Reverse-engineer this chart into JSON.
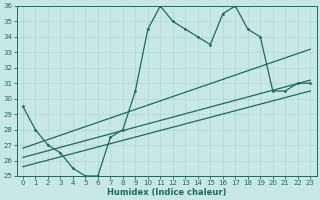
{
  "xlabel": "Humidex (Indice chaleur)",
  "bg_color": "#c8e8e8",
  "grid_color": "#b0d4d4",
  "line_color": "#1a6b5a",
  "xlim": [
    -0.5,
    23.5
  ],
  "ylim": [
    25,
    36
  ],
  "xticks": [
    0,
    1,
    2,
    3,
    4,
    5,
    6,
    7,
    8,
    9,
    10,
    11,
    12,
    13,
    14,
    15,
    16,
    17,
    18,
    19,
    20,
    21,
    22,
    23
  ],
  "yticks": [
    25,
    26,
    27,
    28,
    29,
    30,
    31,
    32,
    33,
    34,
    35,
    36
  ],
  "main_x": [
    0,
    1,
    2,
    3,
    4,
    5,
    6,
    7,
    8,
    9,
    10,
    11,
    12,
    13,
    14,
    15,
    16,
    17,
    18,
    19,
    20,
    21,
    22,
    23
  ],
  "main_y": [
    29.5,
    28,
    27,
    26.5,
    25.5,
    25,
    25,
    27.5,
    28,
    30.5,
    34.5,
    36,
    35,
    34.5,
    34,
    33.5,
    35.5,
    36,
    34.5,
    34,
    30.5,
    30.5,
    31,
    31
  ],
  "trend1_x": [
    0,
    23
  ],
  "trend1_y": [
    26.8,
    33.2
  ],
  "trend2_x": [
    0,
    23
  ],
  "trend2_y": [
    26.2,
    31.2
  ],
  "trend3_x": [
    0,
    23
  ],
  "trend3_y": [
    25.6,
    30.5
  ],
  "tick_fontsize": 5,
  "xlabel_fontsize": 6,
  "lw": 0.9,
  "ms": 2.0
}
